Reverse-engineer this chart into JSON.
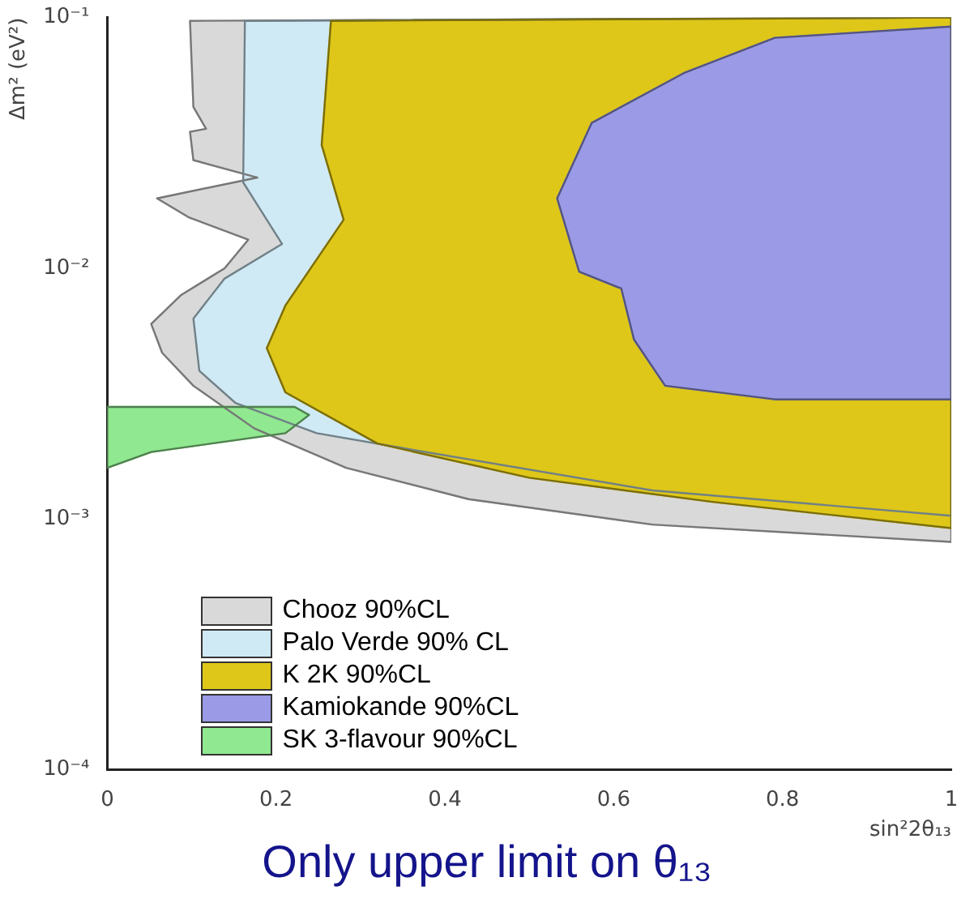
{
  "chart_data": {
    "type": "area",
    "xlabel": "sin²2θ₁₃",
    "ylabel": "Δm² (eV²)",
    "log": "y",
    "legend": "bottom",
    "xlim": [
      0,
      1
    ],
    "ylim": [
      0.0001,
      0.1
    ],
    "xticks": [
      0,
      0.2,
      0.4,
      0.6,
      0.8,
      1
    ],
    "yticks": [
      {
        "value": 0.0001,
        "label": "10⁻⁴"
      },
      {
        "value": 0.001,
        "label": "10⁻³"
      },
      {
        "value": 0.01,
        "label": "10⁻²"
      },
      {
        "value": 0.1,
        "label": "10⁻¹"
      }
    ],
    "annotations": [
      "Only upper limit on θ₁₃"
    ],
    "series": [
      {
        "name": "Chooz 90%CL",
        "color": "#d9d9d9",
        "x": [
          0.098,
          0.102,
          0.117,
          0.098,
          0.102,
          0.178,
          0.059,
          0.096,
          0.167,
          0.139,
          0.087,
          0.052,
          0.065,
          0.102,
          0.174,
          0.283,
          0.428,
          0.646,
          1,
          1
        ],
        "values": [
          0.097,
          0.044,
          0.036,
          0.035,
          0.027,
          0.023,
          0.019,
          0.016,
          0.013,
          0.01,
          0.0078,
          0.006,
          0.0046,
          0.0034,
          0.0023,
          0.0016,
          0.0012,
          0.00095,
          0.00081,
          0.1
        ]
      },
      {
        "name": "Palo Verde 90% CL",
        "color": "#cfe9f5",
        "x": [
          0.163,
          0.161,
          0.207,
          0.139,
          0.102,
          0.109,
          0.152,
          0.248,
          0.357,
          0.646,
          1,
          1
        ],
        "values": [
          0.097,
          0.022,
          0.0125,
          0.0091,
          0.0063,
          0.0039,
          0.0029,
          0.0022,
          0.0019,
          0.0013,
          0.00103,
          0.1
        ]
      },
      {
        "name": "K 2K 90%CL",
        "color": "#dec718",
        "x": [
          0.265,
          0.254,
          0.28,
          0.211,
          0.189,
          0.211,
          0.32,
          0.5,
          0.717,
          1,
          1
        ],
        "values": [
          0.097,
          0.031,
          0.0156,
          0.0071,
          0.0048,
          0.0032,
          0.002,
          0.00146,
          0.00117,
          0.00092,
          0.1
        ]
      },
      {
        "name": "Kamiokande 90%CL",
        "color": "#9a9ae6",
        "x": [
          1,
          0.791,
          0.683,
          0.574,
          0.533,
          0.559,
          0.609,
          0.624,
          0.661,
          0.791,
          1
        ],
        "values": [
          0.092,
          0.083,
          0.06,
          0.038,
          0.019,
          0.0097,
          0.0083,
          0.0052,
          0.0034,
          0.003,
          0.003
        ]
      },
      {
        "name": "SK 3-flavour 90%CL",
        "color": "#90e890",
        "x": [
          0,
          0.222,
          0.239,
          0.211,
          0.052,
          0
        ],
        "values": [
          0.0028,
          0.0028,
          0.0026,
          0.0022,
          0.00185,
          0.0016
        ]
      }
    ]
  }
}
